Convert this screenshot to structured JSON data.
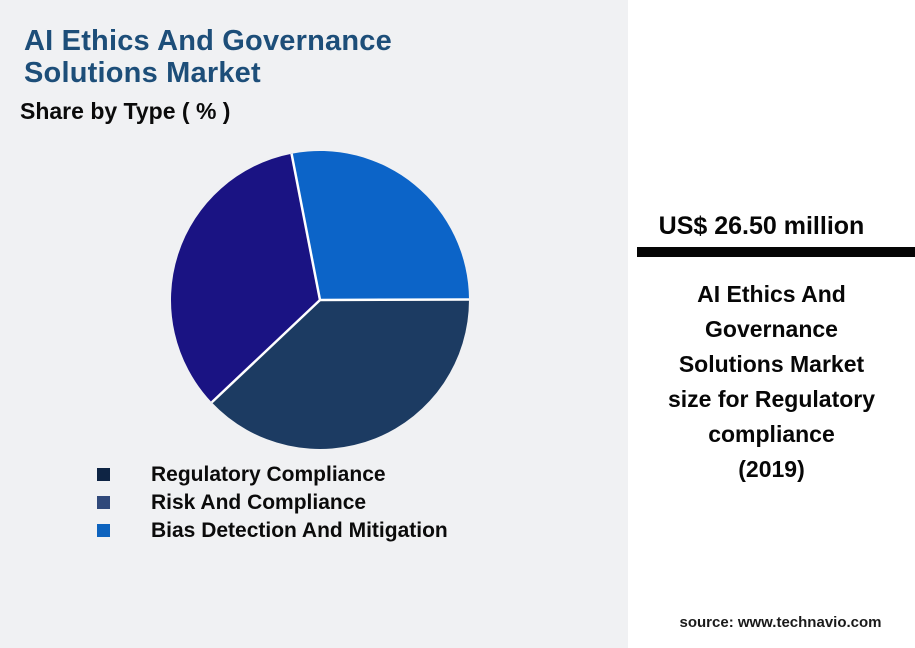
{
  "page": {
    "background": "#f0f1f3"
  },
  "header": {
    "title": "AI Ethics And Governance\nSolutions Market",
    "title_color": "#1d4e79",
    "subtitle": "Share by Type ( % )"
  },
  "chart_data": {
    "type": "pie",
    "title": "AI Ethics And Governance Solutions Market",
    "subtitle": "Share by Type ( % )",
    "unit": "%",
    "start_angle_deg": -11,
    "slices": [
      {
        "id": "bias-detection-and-mitigation",
        "label": "Bias Detection And Mitigation",
        "value": 28,
        "color": "#0c64c8"
      },
      {
        "id": "regulatory-compliance",
        "label": "Regulatory Compliance",
        "value": 38,
        "color": "#1c3b62"
      },
      {
        "id": "risk-and-compliance",
        "label": "Risk And Compliance",
        "value": 34,
        "color": "#1a1383"
      }
    ],
    "legend_position": "bottom-left",
    "legend_order": [
      "Regulatory Compliance",
      "Risk And Compliance",
      "Bias Detection And Mitigation"
    ]
  },
  "legend": {
    "items": [
      {
        "label": "Regulatory Compliance",
        "swatch_color": "#0e2444"
      },
      {
        "label": "Risk And Compliance",
        "swatch_color": "#30497a"
      },
      {
        "label": "Bias Detection And Mitigation",
        "swatch_color": "#0d63be"
      }
    ]
  },
  "side_panel": {
    "metric_value": "US$ 26.50 million",
    "description": "AI Ethics And\nGovernance\nSolutions Market\nsize for Regulatory\ncompliance\n(2019)",
    "source": "source: www.technavio.com",
    "background": "#ffffff",
    "divider_color": "#050505"
  }
}
